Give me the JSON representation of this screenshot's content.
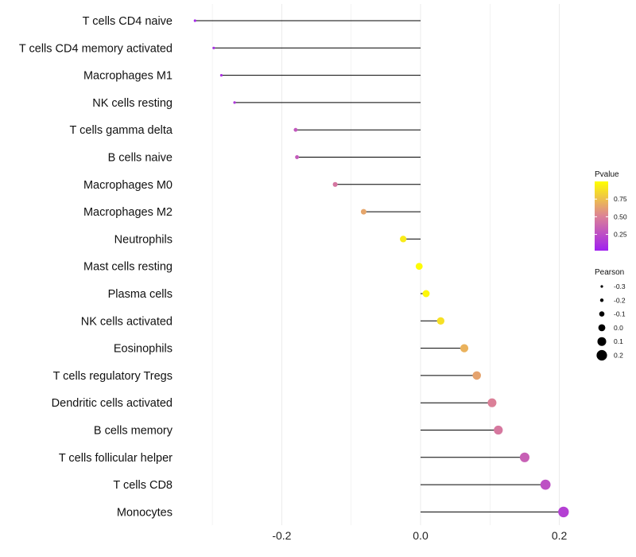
{
  "chart_data": {
    "type": "lollipop",
    "title": "",
    "xlabel": "",
    "ylabel": "",
    "xlim": [
      -0.38,
      0.23
    ],
    "x_ticks": [
      {
        "value": -0.2,
        "label": "-0.2"
      },
      {
        "value": 0.0,
        "label": "0.0"
      },
      {
        "value": 0.2,
        "label": "0.2"
      }
    ],
    "points": [
      {
        "category": "T cells CD4 naive",
        "pearson": -0.325,
        "pvalue": 0.06
      },
      {
        "category": "T cells CD4 memory activated",
        "pearson": -0.298,
        "pvalue": 0.08
      },
      {
        "category": "Macrophages M1",
        "pearson": -0.287,
        "pvalue": 0.1
      },
      {
        "category": "NK cells resting",
        "pearson": -0.268,
        "pvalue": 0.14
      },
      {
        "category": "T cells gamma delta",
        "pearson": -0.18,
        "pvalue": 0.3
      },
      {
        "category": "B cells naive",
        "pearson": -0.178,
        "pvalue": 0.31
      },
      {
        "category": "Macrophages M0",
        "pearson": -0.123,
        "pvalue": 0.45
      },
      {
        "category": "Macrophages M2",
        "pearson": -0.082,
        "pvalue": 0.65
      },
      {
        "category": "Neutrophils",
        "pearson": -0.025,
        "pvalue": 0.92
      },
      {
        "category": "Mast cells resting",
        "pearson": -0.002,
        "pvalue": 0.99
      },
      {
        "category": "Plasma cells",
        "pearson": 0.008,
        "pvalue": 0.97
      },
      {
        "category": "NK cells activated",
        "pearson": 0.029,
        "pvalue": 0.88
      },
      {
        "category": "Eosinophils",
        "pearson": 0.063,
        "pvalue": 0.7
      },
      {
        "category": "T cells regulatory  Tregs ",
        "pearson": 0.081,
        "pvalue": 0.64
      },
      {
        "category": "Dendritic cells activated",
        "pearson": 0.103,
        "pvalue": 0.5
      },
      {
        "category": "B cells memory",
        "pearson": 0.112,
        "pvalue": 0.46
      },
      {
        "category": "T cells follicular helper",
        "pearson": 0.15,
        "pvalue": 0.34
      },
      {
        "category": "T cells CD8",
        "pearson": 0.18,
        "pvalue": 0.26
      },
      {
        "category": "Monocytes",
        "pearson": 0.206,
        "pvalue": 0.18
      }
    ],
    "legend_pvalue": {
      "title": "Pvalue",
      "breaks": [
        {
          "value": 0.25,
          "label": "0.25"
        },
        {
          "value": 0.5,
          "label": "0.50"
        },
        {
          "value": 0.75,
          "label": "0.75"
        }
      ],
      "range": [
        0.02,
        1.0
      ],
      "color_low": "#a020f0",
      "color_high": "#ffff00"
    },
    "legend_pearson": {
      "title": "Pearson",
      "breaks": [
        {
          "value": -0.3,
          "label": "-0.3"
        },
        {
          "value": -0.2,
          "label": "-0.2"
        },
        {
          "value": -0.1,
          "label": "-0.1"
        },
        {
          "value": 0.0,
          "label": "0.0"
        },
        {
          "value": 0.1,
          "label": "0.1"
        },
        {
          "value": 0.2,
          "label": "0.2"
        }
      ]
    },
    "colors": {
      "stem": "#000000",
      "gridline": "#ebebeb",
      "background": "#ffffff"
    }
  }
}
